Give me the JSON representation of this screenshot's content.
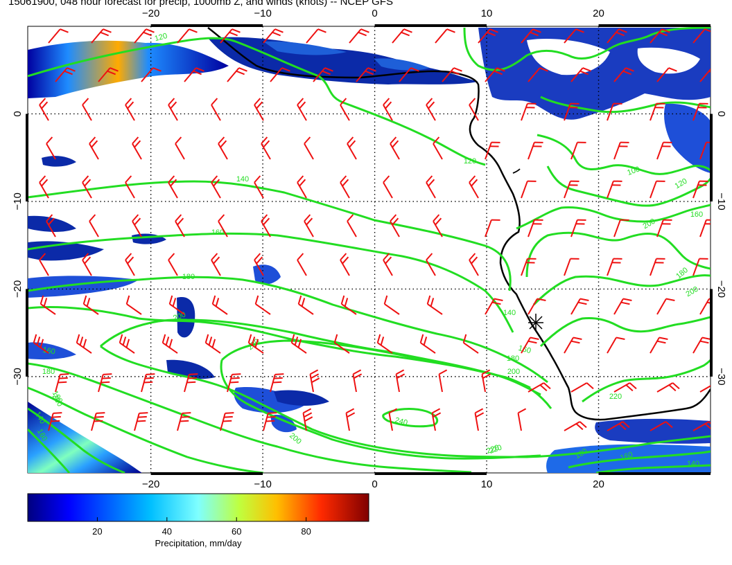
{
  "title": "15061900, 048 hour forecast for precip, 1000mb Z, and winds (knots) -- NCEP GFS",
  "colors": {
    "contour": "#22dd22",
    "contour_label": "#22dd22",
    "wind_barb": "#ee1111",
    "coast": "#000000",
    "grid": "#000000",
    "marker": "#000000",
    "precip_low": "#00007f",
    "precip_mid": "#1e8cff",
    "precip_high": "#800000"
  },
  "map": {
    "lon_range": [
      -31,
      30
    ],
    "lat_range": [
      -41,
      10
    ],
    "top_labels": [
      "−20",
      "−10",
      "0",
      "10",
      "20"
    ],
    "bottom_labels": [
      "−20",
      "−10",
      "0",
      "10",
      "20"
    ],
    "left_labels": [
      "0",
      "−10",
      "−20",
      "−30"
    ],
    "right_labels": [
      "0",
      "−10",
      "−20",
      "−30"
    ],
    "top_label_lons": [
      -20,
      -10,
      0,
      10,
      20
    ],
    "left_label_lats": [
      0,
      -10,
      -20,
      -30
    ],
    "gridline_lons": [
      -20,
      -10,
      0,
      10,
      20
    ],
    "gridline_lats": [
      0,
      -10,
      -20,
      -30
    ],
    "marker": {
      "name": "station-star-marker",
      "lon": 15,
      "lat": -23.5
    }
  },
  "contours": {
    "description_units": "1000mb geopotential height (m)",
    "labels": [
      "120",
      "120",
      "100",
      "120",
      "140",
      "160",
      "160",
      "180",
      "180",
      "200",
      "200",
      "200",
      "220",
      "220",
      "240",
      "200",
      "220",
      "140",
      "160",
      "180",
      "200",
      "220",
      "180",
      "160",
      "140",
      "160",
      "180",
      "200",
      "140",
      "160",
      "180"
    ]
  },
  "colorbar": {
    "ticks": [
      "20",
      "40",
      "60",
      "80"
    ],
    "tick_values": [
      20,
      40,
      60,
      80
    ],
    "range": [
      0,
      98
    ],
    "label": "Precipitation, mm/day"
  }
}
